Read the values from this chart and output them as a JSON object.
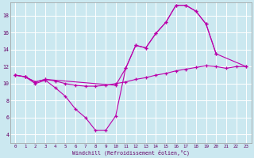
{
  "xlabel": "Windchill (Refroidissement éolien,°C)",
  "background_color": "#cbe8f0",
  "grid_color": "#ffffff",
  "line_color": "#bb00aa",
  "xlim_min": -0.5,
  "xlim_max": 23.5,
  "ylim_min": 3.0,
  "ylim_max": 19.5,
  "yticks": [
    4,
    6,
    8,
    10,
    12,
    14,
    16,
    18
  ],
  "xticks": [
    0,
    1,
    2,
    3,
    4,
    5,
    6,
    7,
    8,
    9,
    10,
    11,
    12,
    13,
    14,
    15,
    16,
    17,
    18,
    19,
    20,
    21,
    22,
    23
  ],
  "curve_dip_x": [
    0,
    1,
    2,
    3,
    4,
    5,
    6,
    7,
    8,
    9,
    10,
    11,
    12,
    13,
    14,
    15,
    16,
    17,
    18,
    19,
    20
  ],
  "curve_dip_y": [
    11,
    10.8,
    10.0,
    10.4,
    9.5,
    8.5,
    7.0,
    6.0,
    4.5,
    4.5,
    6.2,
    11.8,
    14.5,
    14.2,
    15.9,
    17.2,
    19.2,
    19.2,
    18.5,
    17.0,
    13.5
  ],
  "curve_top_x": [
    0,
    1,
    2,
    3,
    10,
    11,
    12,
    13,
    14,
    15,
    16,
    17,
    18,
    19,
    20,
    23
  ],
  "curve_top_y": [
    11,
    10.8,
    10.2,
    10.5,
    9.8,
    11.8,
    14.5,
    14.2,
    15.9,
    17.2,
    19.2,
    19.2,
    18.5,
    17.0,
    13.5,
    12.0
  ],
  "curve_flat_x": [
    0,
    1,
    2,
    3,
    4,
    5,
    6,
    7,
    8,
    9,
    10,
    11,
    12,
    13,
    14,
    15,
    16,
    17,
    18,
    19,
    20,
    21,
    22,
    23
  ],
  "curve_flat_y": [
    11,
    10.8,
    10.2,
    10.5,
    10.3,
    10.0,
    9.8,
    9.7,
    9.7,
    9.8,
    10.0,
    10.2,
    10.5,
    10.7,
    11.0,
    11.2,
    11.5,
    11.7,
    11.9,
    12.1,
    12.0,
    11.8,
    12.0,
    12.0
  ]
}
